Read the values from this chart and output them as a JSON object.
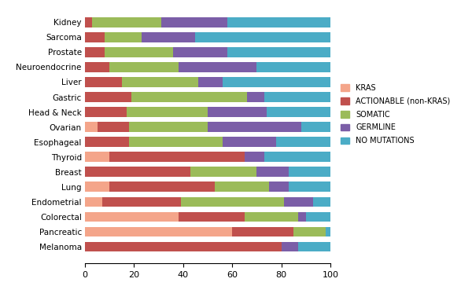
{
  "tumor_types": [
    "Melanoma",
    "Pancreatic",
    "Colorectal",
    "Endometrial",
    "Lung",
    "Breast",
    "Thyroid",
    "Esophageal",
    "Ovarian",
    "Head & Neck",
    "Gastric",
    "Liver",
    "Neuroendocrine",
    "Prostate",
    "Sarcoma",
    "Kidney"
  ],
  "kras": [
    0,
    60,
    38,
    7,
    10,
    0,
    10,
    0,
    5,
    0,
    0,
    0,
    0,
    0,
    0,
    0
  ],
  "actionable": [
    80,
    25,
    27,
    32,
    43,
    43,
    55,
    18,
    13,
    17,
    19,
    15,
    10,
    8,
    8,
    3
  ],
  "somatic": [
    0,
    13,
    22,
    42,
    22,
    27,
    0,
    38,
    32,
    33,
    47,
    31,
    28,
    28,
    15,
    28
  ],
  "germline": [
    7,
    0,
    3,
    12,
    8,
    13,
    8,
    22,
    38,
    24,
    7,
    10,
    32,
    22,
    22,
    27
  ],
  "no_mutations": [
    13,
    2,
    10,
    7,
    17,
    17,
    27,
    22,
    12,
    26,
    27,
    44,
    30,
    42,
    55,
    42
  ],
  "colors": {
    "kras": "#F4A58A",
    "actionable": "#C0504D",
    "somatic": "#9BBB59",
    "germline": "#7B5EA7",
    "no_mutations": "#4BACC6"
  },
  "legend_labels": [
    "KRAS",
    "ACTIONABLE (non-KRAS)",
    "SOMATIC",
    "GERMLINE",
    "NO MUTATIONS"
  ],
  "xlim": [
    0,
    100
  ],
  "xticks": [
    0,
    20,
    40,
    60,
    80,
    100
  ],
  "bar_height": 0.65,
  "figsize": [
    6.0,
    3.64
  ],
  "dpi": 100
}
